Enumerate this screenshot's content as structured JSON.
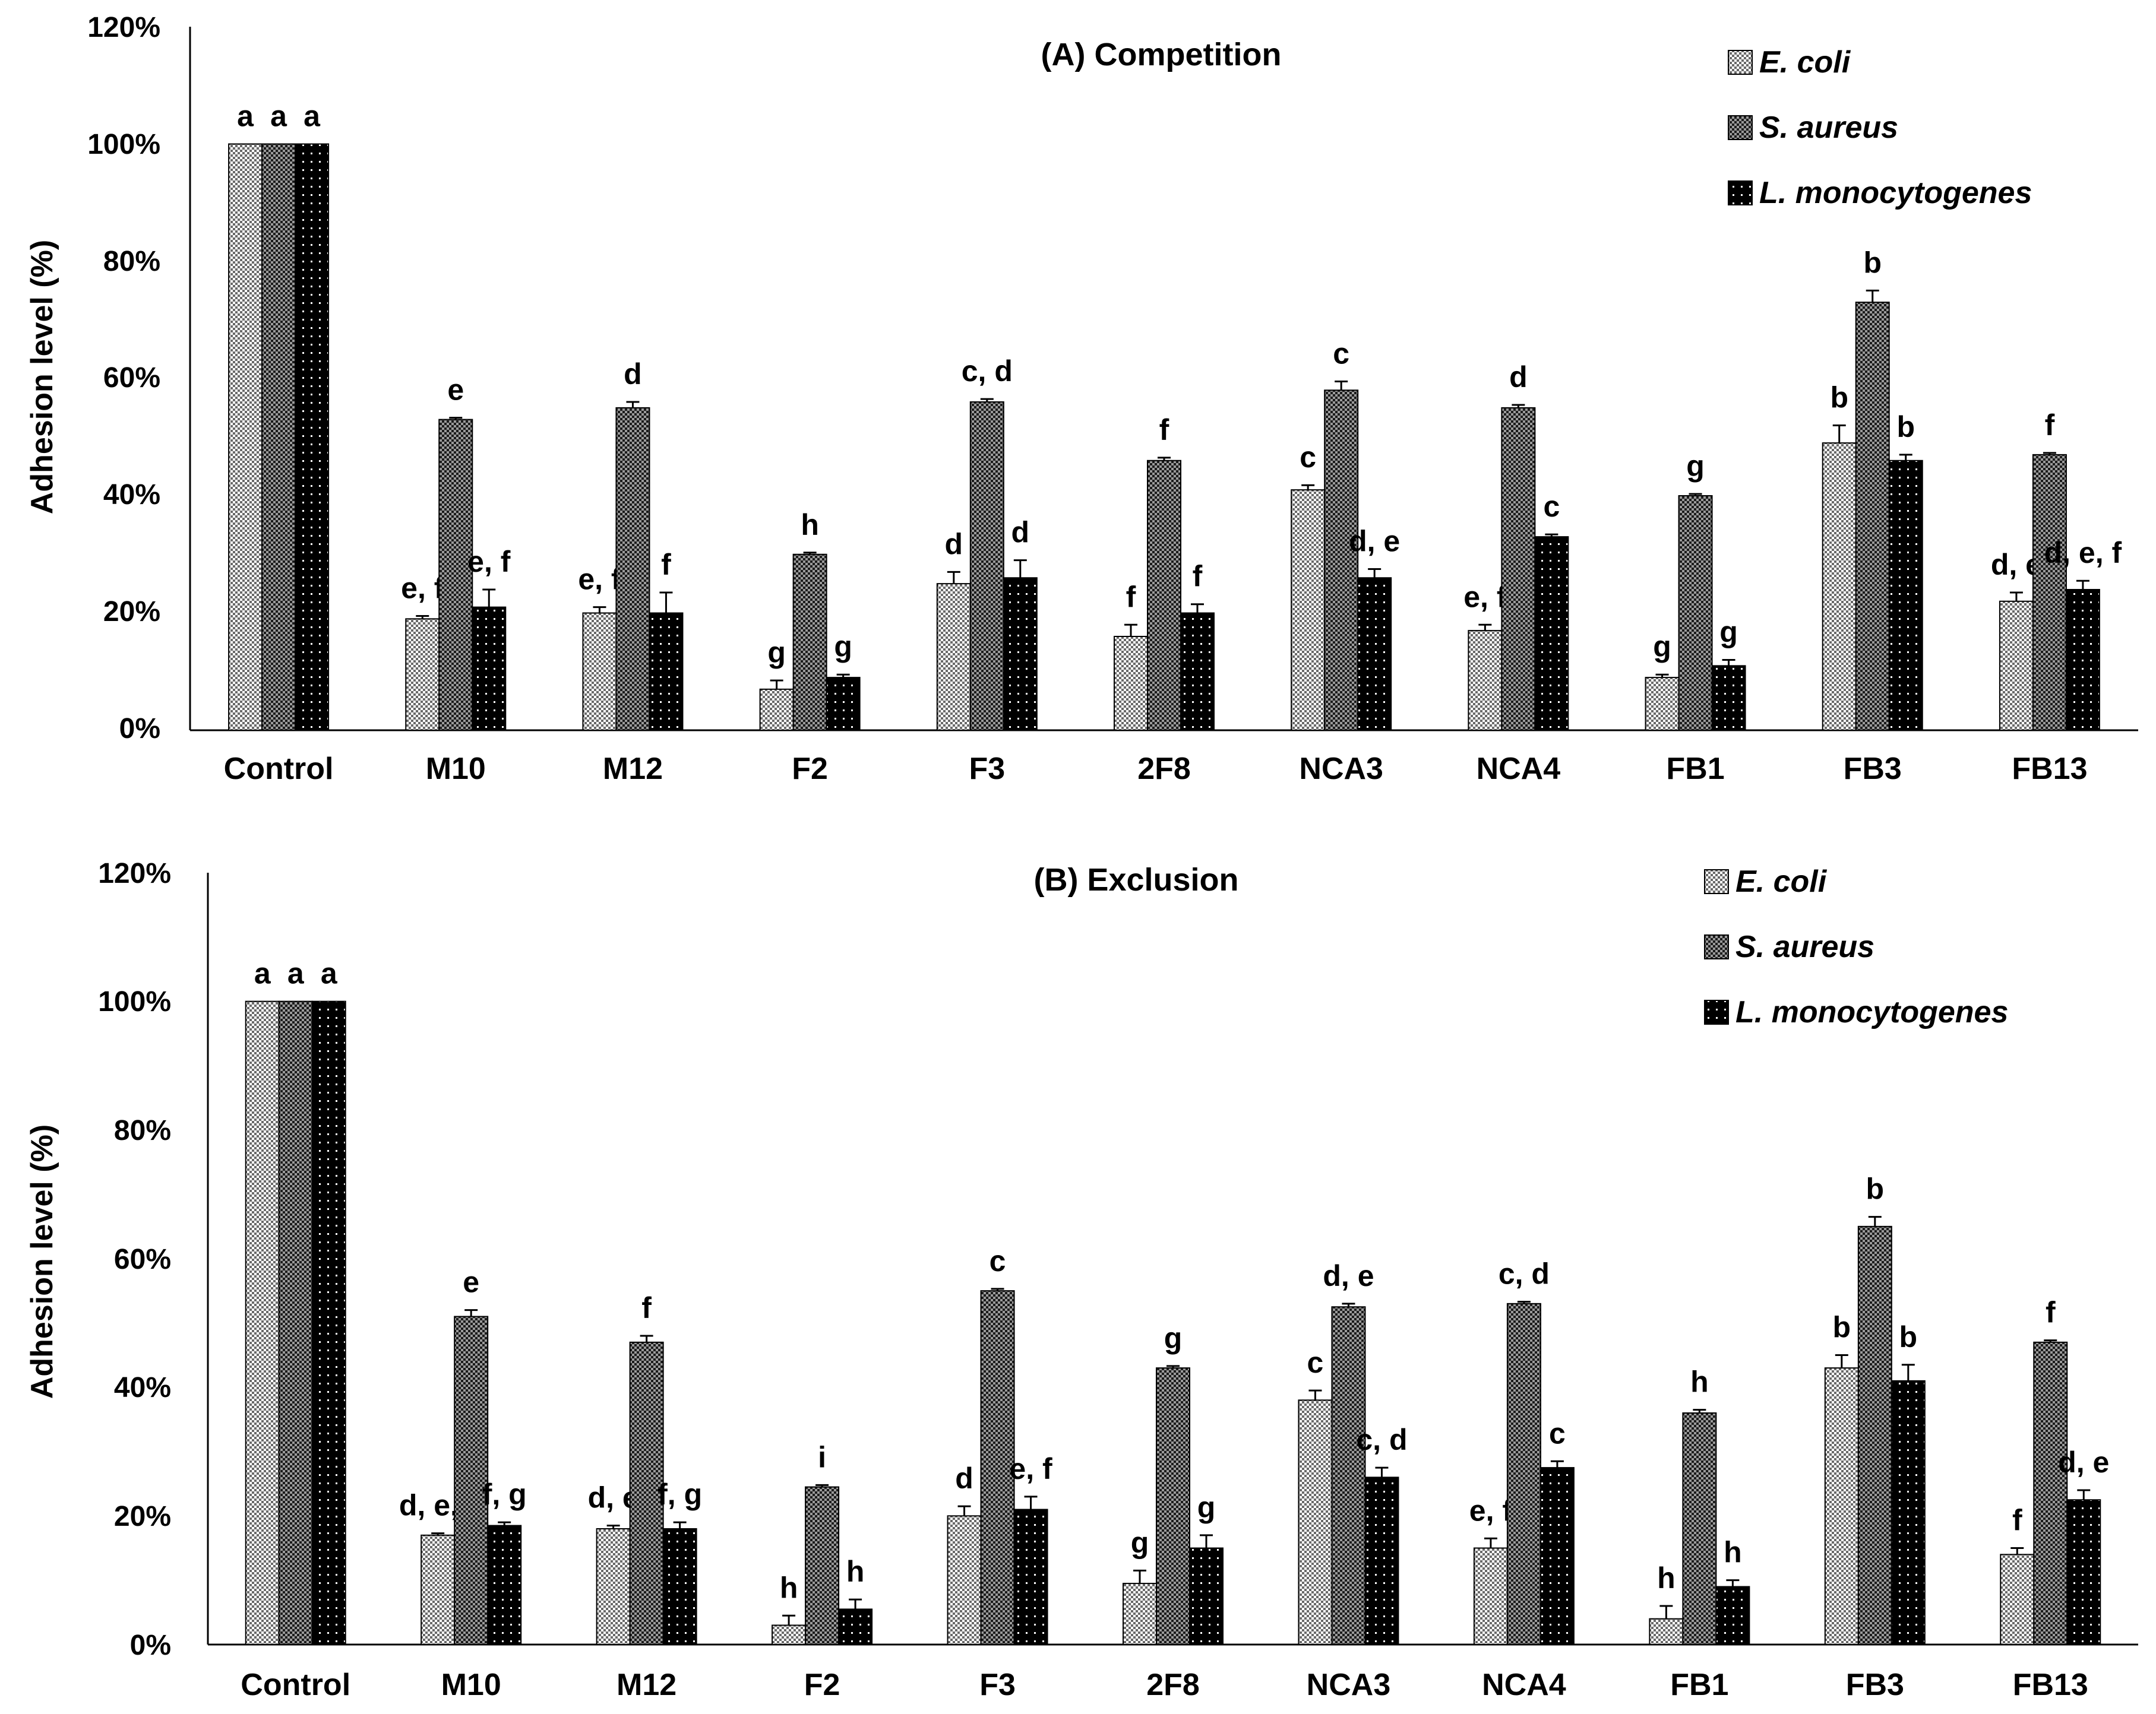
{
  "chart_data": [
    {
      "type": "bar",
      "title": "(A) Competition",
      "xlabel": "",
      "ylabel": "Adhesion level (%)",
      "ylim": [
        0,
        120
      ],
      "yticks": [
        "0%",
        "20%",
        "40%",
        "60%",
        "80%",
        "100%",
        "120%"
      ],
      "categories": [
        "Control",
        "M10",
        "M12",
        "F2",
        "F3",
        "2F8",
        "NCA3",
        "NCA4",
        "FB1",
        "FB3",
        "FB13"
      ],
      "legend_position": "top-right",
      "series": [
        {
          "name": "E. coli",
          "pattern": "light-check",
          "values": [
            100,
            19,
            20,
            7,
            25,
            16,
            41,
            17,
            9,
            49,
            22
          ],
          "errors": [
            0,
            0.5,
            1,
            1.5,
            2,
            2,
            0.8,
            1,
            0.5,
            3,
            1.5
          ],
          "labels": [
            "a",
            "e, f",
            "e, f",
            "g",
            "d",
            "f",
            "c",
            "e, f",
            "g",
            "b",
            "d, e"
          ]
        },
        {
          "name": "S. aureus",
          "pattern": "dark-check",
          "values": [
            100,
            53,
            55,
            30,
            56,
            46,
            58,
            55,
            40,
            73,
            47
          ],
          "errors": [
            0,
            0.3,
            1,
            0.3,
            0.5,
            0.5,
            1.5,
            0.5,
            0.3,
            2,
            0.3
          ],
          "labels": [
            "a",
            "e",
            "d",
            "h",
            "c, d",
            "f",
            "c",
            "d",
            "g",
            "b",
            "f"
          ]
        },
        {
          "name": "L. monocytogenes",
          "pattern": "black-dots",
          "values": [
            100,
            21,
            20,
            9,
            26,
            20,
            26,
            33,
            11,
            46,
            24
          ],
          "errors": [
            0,
            3,
            3.5,
            0.5,
            3,
            1.5,
            1.5,
            0.4,
            1,
            1,
            1.5
          ],
          "labels": [
            "a",
            "e, f",
            "f",
            "g",
            "d",
            "f",
            "d, e",
            "c",
            "g",
            "b",
            "d, e, f"
          ]
        }
      ]
    },
    {
      "type": "bar",
      "title": "(B) Exclusion",
      "xlabel": "",
      "ylabel": "Adhesion level (%)",
      "ylim": [
        0,
        120
      ],
      "yticks": [
        "0%",
        "20%",
        "40%",
        "60%",
        "80%",
        "100%",
        "120%"
      ],
      "categories": [
        "Control",
        "M10",
        "M12",
        "F2",
        "F3",
        "2F8",
        "NCA3",
        "NCA4",
        "FB1",
        "FB3",
        "FB13"
      ],
      "legend_position": "top-right",
      "series": [
        {
          "name": "E. coli",
          "pattern": "light-check",
          "values": [
            100,
            17,
            18,
            3,
            20,
            9.5,
            38,
            15,
            4,
            43,
            14
          ],
          "errors": [
            0,
            0.3,
            0.5,
            1.5,
            1.5,
            2,
            1.5,
            1.5,
            2,
            2,
            1
          ],
          "labels": [
            "a",
            "d, e, f",
            "d, e",
            "h",
            "d",
            "g",
            "c",
            "e, f",
            "h",
            "b",
            "f"
          ]
        },
        {
          "name": "S. aureus",
          "pattern": "dark-check",
          "values": [
            100,
            51,
            47,
            24.5,
            55,
            43,
            52.5,
            53,
            36,
            65,
            47
          ],
          "errors": [
            0,
            1,
            1,
            0.3,
            0.3,
            0.3,
            0.5,
            0.3,
            0.5,
            1.5,
            0.3
          ],
          "labels": [
            "a",
            "e",
            "f",
            "i",
            "c",
            "g",
            "d, e",
            "c, d",
            "h",
            "b",
            "f"
          ]
        },
        {
          "name": "L. monocytogenes",
          "pattern": "black-dots",
          "values": [
            100,
            18.5,
            18,
            5.5,
            21,
            15,
            26,
            27.5,
            9,
            41,
            22.5
          ],
          "errors": [
            0,
            0.5,
            1,
            1.5,
            2,
            2,
            1.5,
            1,
            1,
            2.5,
            1.5
          ],
          "labels": [
            "a",
            "f, g",
            "f, g",
            "h",
            "e, f",
            "g",
            "c, d",
            "c",
            "h",
            "b",
            "d, e"
          ]
        }
      ]
    }
  ]
}
